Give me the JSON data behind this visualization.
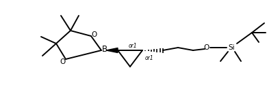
{
  "bg_color": "#ffffff",
  "line_color": "#000000",
  "line_width": 1.4,
  "font_size": 7.5,
  "fig_width": 3.9,
  "fig_height": 1.5,
  "dpi": 100,
  "xlim": [
    0,
    390
  ],
  "ylim": [
    0,
    150
  ]
}
